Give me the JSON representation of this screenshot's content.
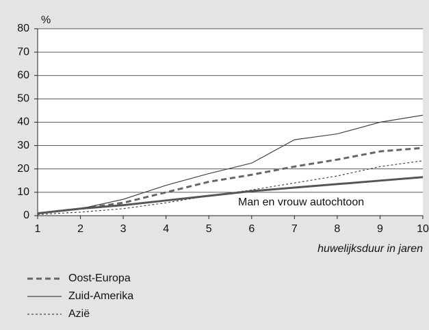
{
  "chart_data": {
    "type": "line",
    "y_label": "%",
    "x_label": "huwelijksduur in jaren",
    "x": [
      1,
      2,
      3,
      4,
      5,
      6,
      7,
      8,
      9,
      10
    ],
    "xlim": [
      1,
      10
    ],
    "xticks": [
      1,
      2,
      3,
      4,
      5,
      6,
      7,
      8,
      9,
      10
    ],
    "ylim": [
      0,
      80
    ],
    "yticks": [
      0,
      10,
      20,
      30,
      40,
      50,
      60,
      70,
      80
    ],
    "grid": true,
    "series": [
      {
        "name": "Oost-Europa",
        "color": "#666666",
        "style": "dashed",
        "width": 3,
        "values": [
          1,
          3,
          5.5,
          10,
          14.5,
          17.5,
          21,
          24,
          27.5,
          29
        ]
      },
      {
        "name": "Zuid-Amerika",
        "color": "#444444",
        "style": "solid",
        "width": 1.2,
        "values": [
          1,
          3,
          7,
          13,
          18,
          22.5,
          32.5,
          35,
          40,
          43
        ]
      },
      {
        "name": "Azië",
        "color": "#444444",
        "style": "dotted",
        "width": 1.2,
        "values": [
          0.5,
          1.5,
          3,
          5.5,
          8.5,
          11,
          14,
          17,
          21,
          23.5
        ]
      },
      {
        "name": "Man en vrouw autochtoon",
        "color": "#555555",
        "style": "solid",
        "width": 3,
        "in_legend": false,
        "values": [
          1,
          3,
          4.5,
          6.5,
          8.5,
          10.5,
          12,
          13.5,
          15,
          16.5
        ]
      }
    ]
  }
}
